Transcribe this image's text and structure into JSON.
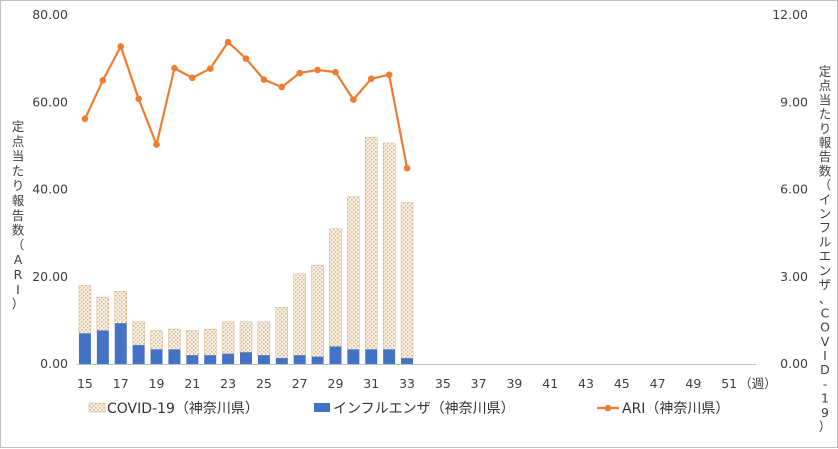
{
  "chart_data": {
    "type": "bar",
    "x_unit_label": "（週）",
    "weeks": [
      15,
      16,
      17,
      18,
      19,
      20,
      21,
      22,
      23,
      24,
      25,
      26,
      27,
      28,
      29,
      30,
      31,
      32,
      33,
      34,
      35,
      36,
      37,
      38,
      39,
      40,
      41,
      42,
      43,
      44,
      45,
      46,
      47,
      48,
      49,
      50,
      51,
      52
    ],
    "x_tick_labels": [
      "15",
      "17",
      "19",
      "21",
      "23",
      "25",
      "27",
      "29",
      "31",
      "33",
      "35",
      "37",
      "39",
      "41",
      "43",
      "45",
      "47",
      "49",
      "51"
    ],
    "y_left": {
      "label": "定点当たり報告数（ARI）",
      "range": [
        0,
        80
      ],
      "ticks": [
        "0.00",
        "20.00",
        "40.00",
        "60.00",
        "80.00"
      ]
    },
    "y_right": {
      "label": "定点当たり報告数（インフルエンザ、COVID-19）",
      "range": [
        0,
        12
      ],
      "ticks": [
        "0.00",
        "3.00",
        "6.00",
        "9.00",
        "12.00"
      ]
    },
    "legend_position": "bottom",
    "series": [
      {
        "name": "COVID-19（神奈川県）",
        "type": "bar-stacked",
        "axis": "right",
        "color": "#d9b58a",
        "weeks": [
          15,
          16,
          17,
          18,
          19,
          20,
          21,
          22,
          23,
          24,
          25,
          26,
          27,
          28,
          29,
          30,
          31,
          32,
          33
        ],
        "values": [
          1.65,
          1.15,
          1.1,
          0.8,
          0.65,
          0.7,
          0.85,
          0.9,
          1.1,
          1.05,
          1.15,
          1.75,
          2.8,
          3.15,
          4.05,
          5.25,
          7.3,
          7.1,
          5.35
        ]
      },
      {
        "name": "インフルエンザ（神奈川県）",
        "type": "bar",
        "axis": "right",
        "color": "#4472c4",
        "weeks": [
          15,
          16,
          17,
          18,
          19,
          20,
          21,
          22,
          23,
          24,
          25,
          26,
          27,
          28,
          29,
          30,
          31,
          32,
          33
        ],
        "values": [
          1.05,
          1.15,
          1.4,
          0.65,
          0.5,
          0.5,
          0.3,
          0.3,
          0.35,
          0.4,
          0.3,
          0.2,
          0.3,
          0.25,
          0.6,
          0.5,
          0.5,
          0.5,
          0.2
        ]
      },
      {
        "name": "ARI（神奈川県）",
        "type": "line",
        "axis": "left",
        "color": "#ed7d31",
        "weeks": [
          15,
          16,
          17,
          18,
          19,
          20,
          21,
          22,
          23,
          24,
          25,
          26,
          27,
          28,
          29,
          30,
          31,
          32,
          33
        ],
        "values": [
          56.2,
          65.0,
          72.8,
          60.8,
          50.3,
          67.8,
          65.6,
          67.7,
          73.8,
          70.0,
          65.2,
          63.5,
          66.7,
          67.4,
          66.9,
          60.6,
          65.4,
          66.3,
          44.9
        ]
      }
    ]
  }
}
